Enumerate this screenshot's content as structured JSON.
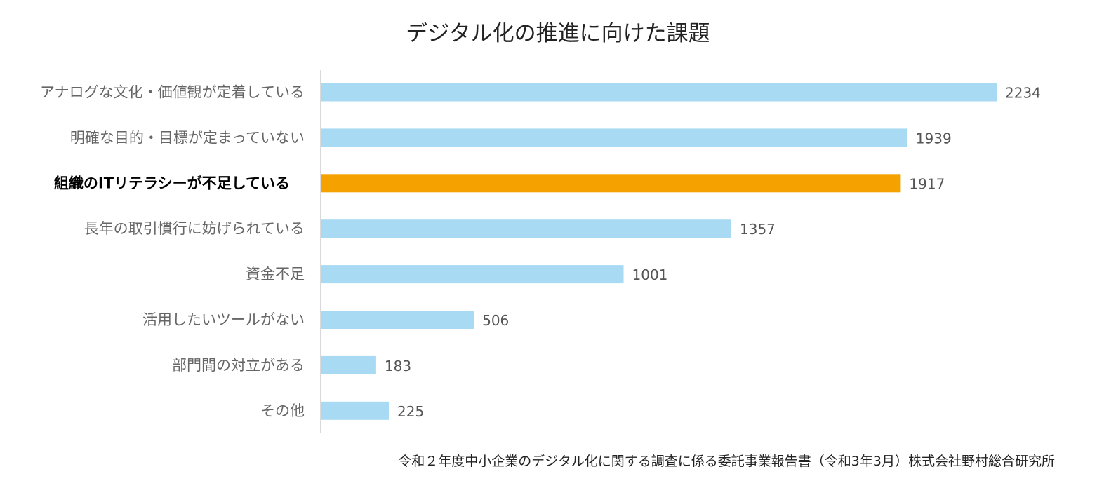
{
  "chart_data": {
    "type": "bar",
    "orientation": "horizontal",
    "title": "デジタル化の推進に向けた課題",
    "categories": [
      "アナログな文化・価値観が定着している",
      "明確な目的・目標が定まっていない",
      "組織のITリテラシーが不足している",
      "長年の取引慣行に妨げられている",
      "資金不足",
      "活用したいツールがない",
      "部門間の対立がある",
      "その他"
    ],
    "values": [
      2234,
      1939,
      1917,
      1357,
      1001,
      506,
      183,
      225
    ],
    "highlight_index": 2,
    "xlim": [
      0,
      2300
    ],
    "xlabel": "",
    "ylabel": "",
    "grid": false,
    "legend": "none",
    "colors": {
      "bar": "#a9daf4",
      "highlight": "#f5a100",
      "axis": "#d9d9d9"
    }
  },
  "source": "令和２年度中小企業のデジタル化に関する調査に係る委託事業報告書（令和3年3月）株式会社野村総合研究所"
}
